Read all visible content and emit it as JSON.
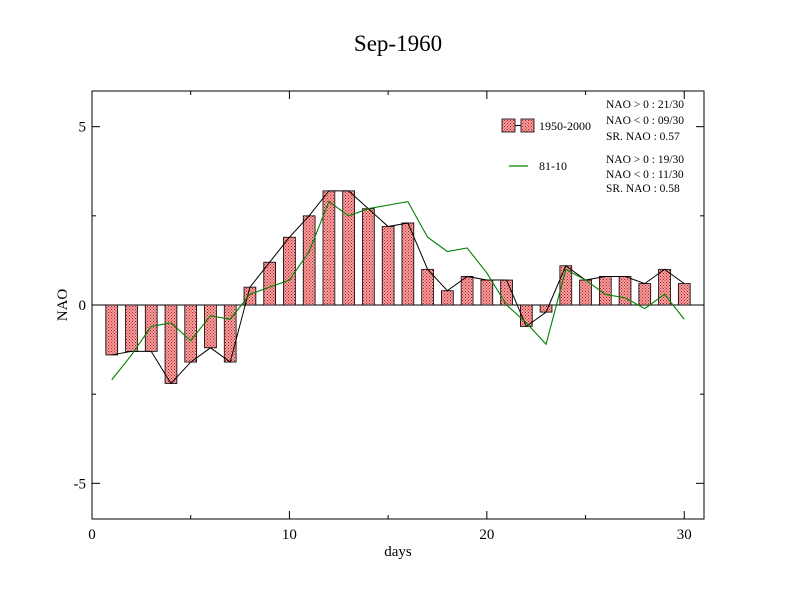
{
  "chart_data": {
    "type": "bar",
    "title": "Sep-1960",
    "xlabel": "days",
    "ylabel": "NAO",
    "xlim": [
      0,
      31
    ],
    "ylim": [
      -6,
      6
    ],
    "x_ticks": [
      0,
      10,
      20,
      30
    ],
    "y_ticks": [
      -5,
      0,
      5
    ],
    "x_tick_labels": [
      "0",
      "10",
      "20",
      "30"
    ],
    "y_tick_labels": [
      "-5",
      "0",
      "5"
    ],
    "legend_position": "top-right",
    "x": [
      1,
      2,
      3,
      4,
      5,
      6,
      7,
      8,
      9,
      10,
      11,
      12,
      13,
      14,
      15,
      16,
      17,
      18,
      19,
      20,
      21,
      22,
      23,
      24,
      25,
      26,
      27,
      28,
      29,
      30
    ],
    "series": [
      {
        "name": "1950-2000",
        "kind": "bar-with-line",
        "color": "#e05a5a",
        "values": [
          -1.4,
          -1.3,
          -1.3,
          -2.2,
          -1.6,
          -1.2,
          -1.6,
          0.5,
          1.2,
          1.9,
          2.5,
          3.2,
          3.2,
          2.7,
          2.2,
          2.3,
          1.0,
          0.4,
          0.8,
          0.7,
          0.7,
          -0.6,
          -0.2,
          1.1,
          0.7,
          0.8,
          0.8,
          0.6,
          1.0,
          0.6
        ],
        "stats": [
          "NAO > 0 :  21/30",
          "NAO < 0 :  09/30",
          "SR. NAO :   0.57"
        ]
      },
      {
        "name": "81-10",
        "kind": "line",
        "color": "#008000",
        "values": [
          -2.1,
          -1.4,
          -0.6,
          -0.5,
          -1.0,
          -0.3,
          -0.4,
          0.3,
          0.5,
          0.7,
          1.5,
          2.9,
          2.5,
          2.7,
          2.8,
          2.9,
          1.9,
          1.5,
          1.6,
          0.9,
          0.0,
          -0.5,
          -1.1,
          1.0,
          0.7,
          0.3,
          0.2,
          -0.1,
          0.3,
          -0.4
        ],
        "stats": [
          "NAO > 0 :  19/30",
          "NAO < 0 :  11/30",
          "SR. NAO :   0.58"
        ]
      }
    ]
  }
}
